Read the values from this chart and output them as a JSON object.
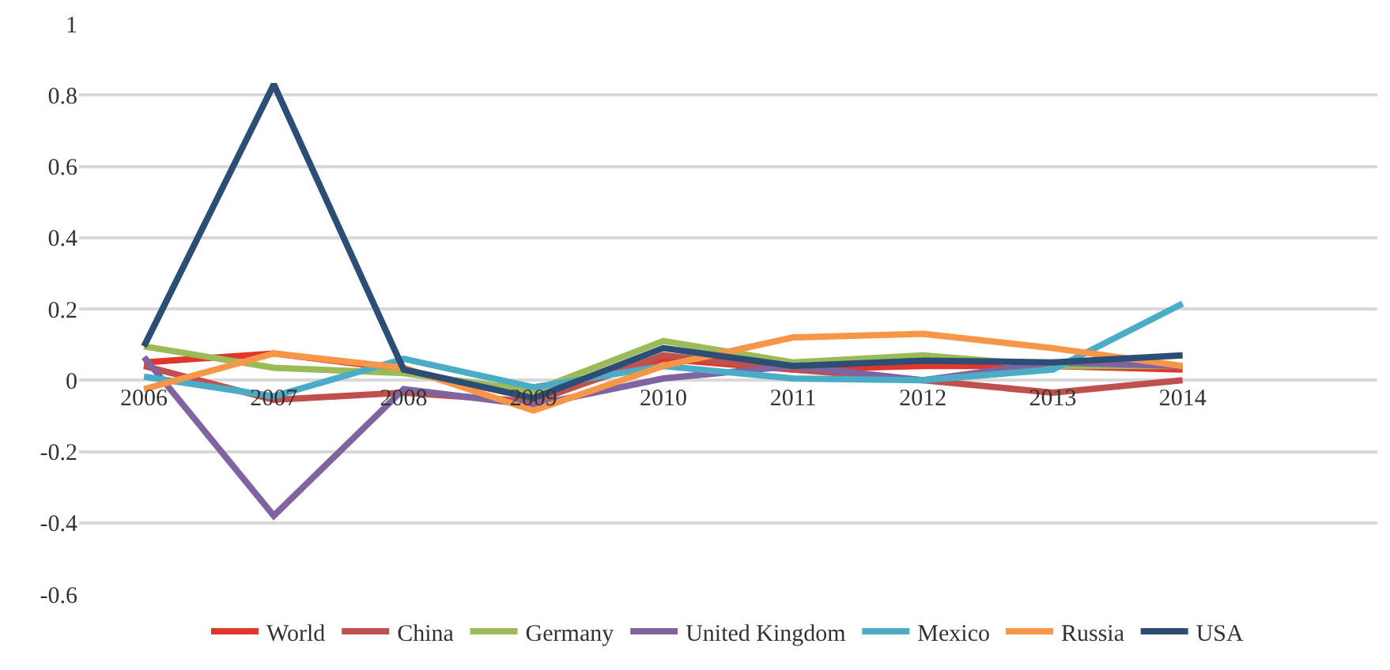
{
  "chart_data": {
    "type": "line",
    "categories": [
      "2006",
      "2007",
      "2008",
      "2009",
      "2010",
      "2011",
      "2012",
      "2013",
      "2014",
      null
    ],
    "series": [
      {
        "name": "World",
        "color": "#e0362b",
        "values": [
          0.05,
          0.075,
          0.03,
          -0.05,
          0.06,
          0.03,
          0.04,
          0.04,
          0.03,
          null
        ]
      },
      {
        "name": "China",
        "color": "#c0504d",
        "values": [
          0.04,
          -0.055,
          -0.035,
          -0.06,
          0.07,
          0.03,
          0.0,
          -0.035,
          0.0,
          null
        ]
      },
      {
        "name": "Germany",
        "color": "#9bbb59",
        "values": [
          0.095,
          0.035,
          0.02,
          -0.03,
          0.11,
          0.05,
          0.07,
          0.04,
          0.04,
          null
        ]
      },
      {
        "name": "United Kingdom",
        "color": "#8064a2",
        "values": [
          0.065,
          -0.38,
          -0.025,
          -0.07,
          0.005,
          0.04,
          0.0,
          0.05,
          0.04,
          null
        ]
      },
      {
        "name": "Mexico",
        "color": "#4bacc6",
        "values": [
          0.01,
          -0.045,
          0.06,
          -0.02,
          0.04,
          0.005,
          0.0,
          0.03,
          0.215,
          null
        ]
      },
      {
        "name": "Russia",
        "color": "#f79646",
        "values": [
          -0.025,
          0.075,
          0.035,
          -0.085,
          0.04,
          0.12,
          0.13,
          0.09,
          0.04,
          null
        ]
      },
      {
        "name": "USA",
        "color": "#2c4d75",
        "values": [
          0.095,
          0.83,
          0.03,
          -0.05,
          0.09,
          0.04,
          0.055,
          0.05,
          0.07,
          null
        ]
      }
    ],
    "ylim": [
      -0.6,
      1
    ],
    "yticks": [
      -0.6,
      -0.4,
      -0.2,
      0,
      0.2,
      0.4,
      0.6,
      0.8,
      1
    ],
    "grid": "y",
    "legend": "bottom",
    "marker": "none",
    "line_style": "solid"
  }
}
